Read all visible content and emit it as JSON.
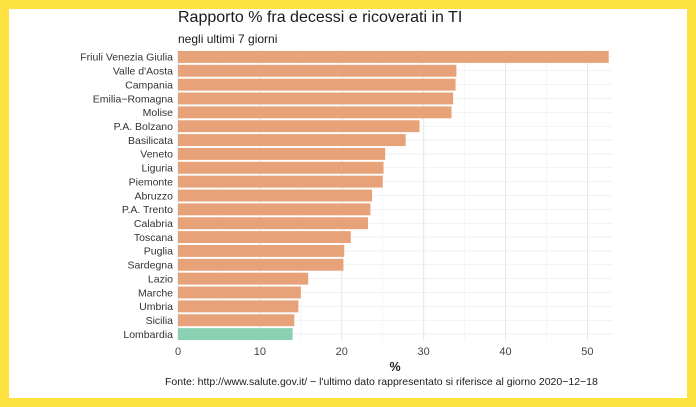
{
  "chart_data": {
    "type": "bar",
    "orientation": "horizontal",
    "title": "Rapporto %  fra decessi e ricoverati in TI",
    "subtitle": "negli ultimi 7 giorni",
    "xlabel": "%",
    "ylabel": "",
    "xlim": [
      0,
      53
    ],
    "xticks": [
      0,
      10,
      20,
      30,
      40,
      50
    ],
    "grid": true,
    "legend": "none",
    "categories": [
      "Friuli Venezia Giulia",
      "Valle d'Aosta",
      "Campania",
      "Emilia−Romagna",
      "Molise",
      "P.A. Bolzano",
      "Basilicata",
      "Veneto",
      "Liguria",
      "Piemonte",
      "Abruzzo",
      "P.A. Trento",
      "Calabria",
      "Toscana",
      "Puglia",
      "Sardegna",
      "Lazio",
      "Marche",
      "Umbria",
      "Sicilia",
      "Lombardia"
    ],
    "values": [
      52.6,
      34.0,
      33.9,
      33.6,
      33.4,
      29.5,
      27.8,
      25.3,
      25.1,
      25.0,
      23.7,
      23.5,
      23.2,
      21.1,
      20.3,
      20.2,
      15.9,
      15.0,
      14.7,
      14.2,
      14.0
    ],
    "colors": {
      "default": "#e8a27a",
      "highlight": "#8ad1b4",
      "highlight_category": "Lombardia",
      "panel_bg": "#ffffff",
      "grid": "#e6e6e6",
      "frame": "#fde23f"
    },
    "source": "Fonte: http://www.salute.gov.it/ − l'ultimo dato rappresentato si riferisce al giorno 2020−12−18"
  }
}
